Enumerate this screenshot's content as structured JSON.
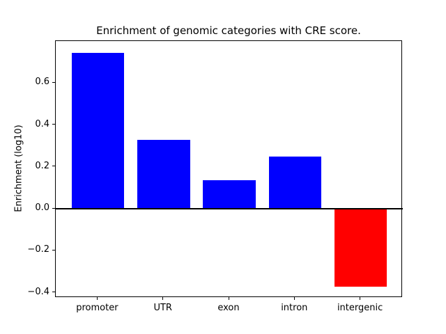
{
  "chart_data": {
    "type": "bar",
    "title": "Enrichment of genomic categories with CRE score.",
    "xlabel": "",
    "ylabel": "Enrichment (log10)",
    "categories": [
      "promoter",
      "UTR",
      "exon",
      "intron",
      "intergenic"
    ],
    "values": [
      0.745,
      0.33,
      0.135,
      0.25,
      -0.37
    ],
    "bar_colors": [
      "#0000ff",
      "#0000ff",
      "#0000ff",
      "#0000ff",
      "#ff0000"
    ],
    "positive_color": "#0000ff",
    "negative_color": "#ff0000",
    "bar_width": 0.8,
    "y_ticks": [
      0.6,
      0.4,
      0.2,
      0.0,
      -0.2,
      -0.4
    ],
    "y_tick_labels": [
      "0.6",
      "0.4",
      "0.2",
      "0.0",
      "−0.2",
      "−0.4"
    ],
    "ylim": [
      -0.425,
      0.8
    ],
    "xlim": [
      -0.64,
      4.64
    ],
    "grid": false,
    "legend": null,
    "zero_line": true,
    "zero_line_color": "#000000",
    "axes_background": "#ffffff",
    "spine_color": "#000000"
  }
}
